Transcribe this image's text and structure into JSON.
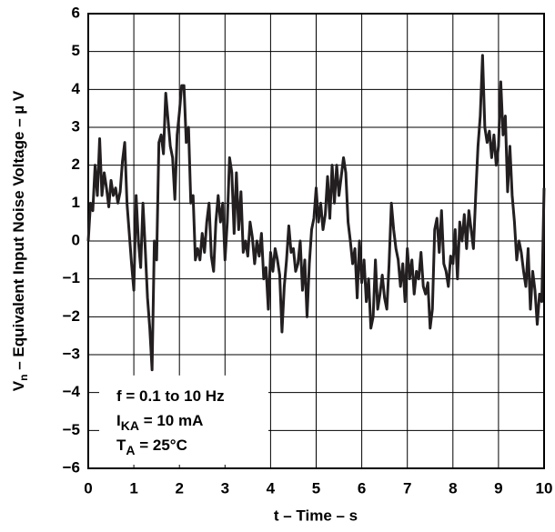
{
  "chart_data": {
    "type": "line",
    "color": "#231f20",
    "grid": true,
    "x_label": "t – Time – s",
    "y_label": {
      "symbol": "V",
      "subscript": "n",
      "text": " – Equivalent Input Noise Voltage – µ V"
    },
    "annotations": [
      {
        "main": "f = 0.1 to 10 Hz"
      },
      {
        "main": "I",
        "sub": "KA",
        "rest": " = 10 mA"
      },
      {
        "main": "T",
        "sub": "A",
        "rest": " = 25°C"
      }
    ],
    "xlim": [
      0,
      10
    ],
    "xticks": [
      0,
      1,
      2,
      3,
      4,
      5,
      6,
      7,
      8,
      9,
      10
    ],
    "ylim": [
      -6,
      6
    ],
    "yticks": [
      {
        "value": -6,
        "label": "−6"
      },
      {
        "value": -5,
        "label": "−5"
      },
      {
        "value": -4,
        "label": "−4"
      },
      {
        "value": -3,
        "label": "−3"
      },
      {
        "value": -2,
        "label": "−2"
      },
      {
        "value": -1,
        "label": "−1"
      },
      0,
      1,
      2,
      3,
      4,
      5,
      6
    ],
    "x": [
      0,
      0.05,
      0.1,
      0.15,
      0.2,
      0.25,
      0.3,
      0.35,
      0.4,
      0.45,
      0.5,
      0.55,
      0.6,
      0.65,
      0.7,
      0.75,
      0.8,
      0.85,
      0.9,
      0.95,
      1,
      1.05,
      1.1,
      1.15,
      1.2,
      1.25,
      1.3,
      1.35,
      1.4,
      1.45,
      1.5,
      1.55,
      1.6,
      1.65,
      1.7,
      1.75,
      1.8,
      1.85,
      1.9,
      1.95,
      2,
      2.05,
      2.1,
      2.15,
      2.2,
      2.25,
      2.3,
      2.35,
      2.4,
      2.45,
      2.5,
      2.55,
      2.6,
      2.65,
      2.7,
      2.75,
      2.8,
      2.85,
      2.9,
      2.95,
      3,
      3.05,
      3.1,
      3.15,
      3.2,
      3.25,
      3.3,
      3.35,
      3.4,
      3.45,
      3.5,
      3.55,
      3.6,
      3.65,
      3.7,
      3.75,
      3.8,
      3.85,
      3.9,
      3.95,
      4,
      4.05,
      4.1,
      4.15,
      4.2,
      4.25,
      4.3,
      4.35,
      4.4,
      4.45,
      4.5,
      4.55,
      4.6,
      4.65,
      4.7,
      4.75,
      4.8,
      4.85,
      4.9,
      4.95,
      5,
      5.05,
      5.1,
      5.15,
      5.2,
      5.25,
      5.3,
      5.35,
      5.4,
      5.45,
      5.5,
      5.55,
      5.6,
      5.65,
      5.7,
      5.75,
      5.8,
      5.85,
      5.9,
      5.95,
      6,
      6.05,
      6.1,
      6.15,
      6.2,
      6.25,
      6.3,
      6.35,
      6.4,
      6.45,
      6.5,
      6.55,
      6.6,
      6.65,
      6.7,
      6.75,
      6.8,
      6.85,
      6.9,
      6.95,
      7,
      7.05,
      7.1,
      7.15,
      7.2,
      7.25,
      7.3,
      7.35,
      7.4,
      7.45,
      7.5,
      7.55,
      7.6,
      7.65,
      7.7,
      7.75,
      7.8,
      7.85,
      7.9,
      7.95,
      8,
      8.05,
      8.1,
      8.15,
      8.2,
      8.25,
      8.3,
      8.35,
      8.4,
      8.45,
      8.5,
      8.55,
      8.6,
      8.65,
      8.7,
      8.75,
      8.8,
      8.85,
      8.9,
      8.95,
      9,
      9.05,
      9.1,
      9.15,
      9.2,
      9.25,
      9.3,
      9.35,
      9.4,
      9.45,
      9.5,
      9.55,
      9.6,
      9.65,
      9.7,
      9.75,
      9.8,
      9.85,
      9.9,
      9.95,
      10
    ],
    "values": [
      0,
      1.0,
      0.8,
      2.0,
      1.2,
      2.7,
      1.2,
      1.8,
      1.4,
      0.9,
      1.6,
      1.2,
      1.4,
      1.0,
      1.3,
      2.1,
      2.6,
      1.0,
      0.2,
      -0.6,
      -1.3,
      1.2,
      0.0,
      -0.7,
      1.0,
      -0.2,
      -1.5,
      -2.3,
      -3.4,
      0,
      -0.5,
      2.6,
      2.8,
      2.3,
      3.9,
      3.2,
      2.5,
      2.2,
      1.1,
      2.8,
      3.4,
      4.1,
      4.1,
      2.6,
      3.0,
      1.0,
      1.2,
      -0.5,
      -0.2,
      -0.5,
      0.2,
      -0.3,
      0.5,
      1.0,
      -0.4,
      -0.8,
      0.5,
      1.2,
      0.5,
      1.0,
      -0.5,
      0.5,
      2.2,
      1.8,
      0.2,
      1.8,
      0.3,
      1.3,
      -0.3,
      0.0,
      -0.4,
      0.5,
      0.1,
      -0.6,
      0.0,
      -0.4,
      0.2,
      -1.0,
      -0.7,
      -1.8,
      -0.3,
      -0.8,
      -0.2,
      -0.5,
      -0.9,
      -2.4,
      -1.2,
      -0.5,
      0.4,
      -0.3,
      -0.2,
      -0.8,
      -0.6,
      0.0,
      -1.3,
      -0.5,
      -2.0,
      -0.6,
      0.3,
      0.6,
      1.4,
      0.5,
      1.0,
      0.3,
      0.7,
      1.7,
      0.6,
      2.0,
      1.0,
      2.0,
      1.2,
      1.7,
      2.2,
      1.8,
      0.5,
      0.0,
      -0.6,
      -0.2,
      -1.5,
      0.0,
      -1.1,
      -0.5,
      -1.6,
      -1.0,
      -2.3,
      -2.0,
      -0.5,
      -1.8,
      -1.4,
      -0.9,
      -1.5,
      -1.8,
      -0.6,
      1.0,
      0.3,
      -0.2,
      -0.5,
      -1.2,
      -0.6,
      -1.6,
      -0.2,
      -1.0,
      -0.5,
      -1.4,
      -0.8,
      -1.0,
      -0.3,
      -1.2,
      -1.4,
      -1.1,
      -2.3,
      -1.8,
      0.3,
      0.6,
      -0.3,
      0.8,
      -0.6,
      -0.8,
      -1.2,
      -0.4,
      -0.6,
      0.3,
      -1.0,
      0.5,
      0.0,
      0.7,
      -0.2,
      0.8,
      0.3,
      -0.2,
      1.2,
      2.5,
      3.3,
      4.9,
      3.0,
      2.6,
      2.9,
      2.2,
      2.8,
      2.0,
      2.5,
      4.2,
      2.8,
      3.3,
      1.3,
      2.5,
      1.2,
      0.5,
      -0.5,
      0.0,
      -0.3,
      -0.8,
      -1.2,
      -0.2,
      -1.8,
      -0.8,
      -1.3,
      -2.2,
      -1.4,
      -1.6,
      1.4
    ]
  }
}
